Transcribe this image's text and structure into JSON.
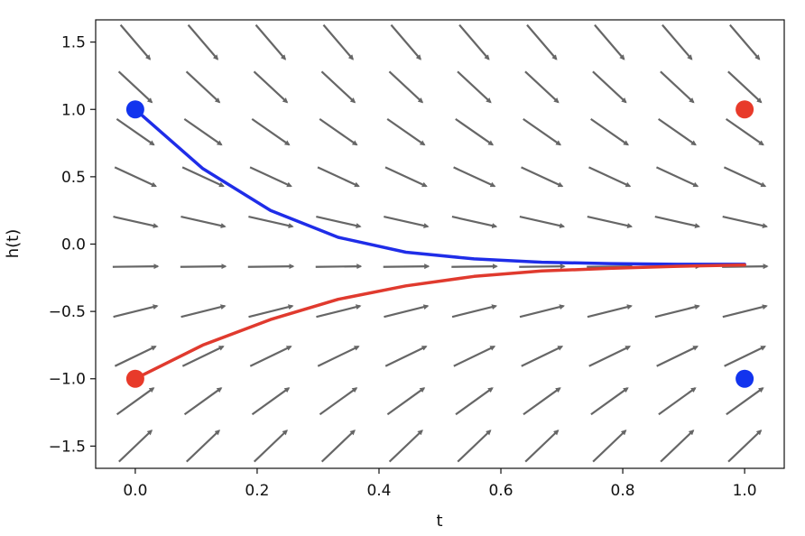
{
  "chart_data": {
    "type": "line",
    "title": "",
    "xlabel": "t",
    "ylabel": "h(t)",
    "xlim": [
      -0.065,
      1.065
    ],
    "ylim": [
      -1.665,
      1.665
    ],
    "x_ticks": [
      0.0,
      0.2,
      0.4,
      0.6,
      0.8,
      1.0
    ],
    "x_tick_labels": [
      "0.0",
      "0.2",
      "0.4",
      "0.6",
      "0.8",
      "1.0"
    ],
    "y_ticks": [
      1.5,
      1.0,
      0.5,
      0.0,
      -0.5,
      -1.0,
      -1.5
    ],
    "y_tick_labels": [
      "1.5",
      "1.0",
      "0.5",
      "0.0",
      "−0.5",
      "−1.0",
      "−1.5"
    ],
    "grid": false,
    "legend": "none",
    "series": [
      {
        "color": "#1f2de8",
        "x": [
          0.0,
          0.111,
          0.222,
          0.333,
          0.444,
          0.556,
          0.667,
          0.778,
          0.889,
          1.0
        ],
        "y": [
          1.0,
          0.56,
          0.25,
          0.05,
          -0.06,
          -0.11,
          -0.135,
          -0.145,
          -0.15,
          -0.15
        ]
      },
      {
        "color": "#e03a2e",
        "x": [
          0.0,
          0.111,
          0.222,
          0.333,
          0.444,
          0.556,
          0.667,
          0.778,
          0.889,
          1.0
        ],
        "y": [
          -1.0,
          -0.75,
          -0.56,
          -0.41,
          -0.31,
          -0.24,
          -0.2,
          -0.18,
          -0.165,
          -0.155
        ]
      }
    ],
    "markers": [
      {
        "name": "blue-start",
        "x": 0.0,
        "y": 1.0,
        "color": "#1234ee"
      },
      {
        "name": "red-start",
        "x": 0.0,
        "y": -1.0,
        "color": "#e83a2a"
      },
      {
        "name": "red-end",
        "x": 1.0,
        "y": 1.0,
        "color": "#e83a2a"
      },
      {
        "name": "blue-end",
        "x": 1.0,
        "y": -1.0,
        "color": "#1234ee"
      }
    ],
    "vector_field": {
      "x": [
        0.0,
        0.111,
        0.222,
        0.333,
        0.444,
        0.556,
        0.667,
        0.778,
        0.889,
        1.0
      ],
      "y": [
        1.5,
        1.167,
        0.833,
        0.5,
        0.167,
        -0.167,
        -0.5,
        -0.833,
        -1.167,
        -1.5
      ],
      "arrow_color": "#666666"
    }
  }
}
